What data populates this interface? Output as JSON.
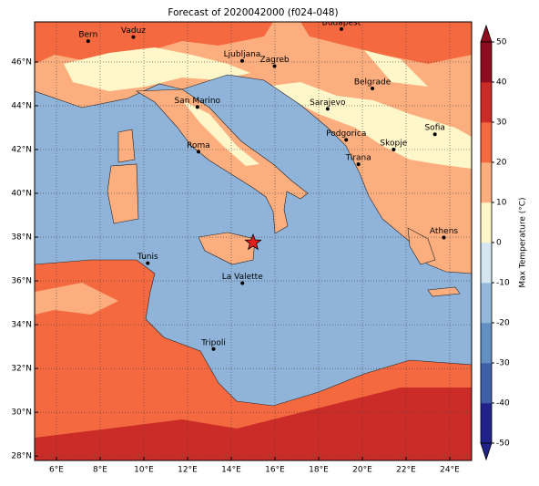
{
  "map": {
    "title": "Forecast of 2020042000 (f024-048)",
    "lon_range": [
      5,
      25
    ],
    "lat_range": [
      27.8,
      47.83
    ],
    "lon_ticks": [
      {
        "value": 6,
        "label": "6°E"
      },
      {
        "value": 8,
        "label": "8°E"
      },
      {
        "value": 10,
        "label": "10°E"
      },
      {
        "value": 12,
        "label": "12°E"
      },
      {
        "value": 14,
        "label": "14°E"
      },
      {
        "value": 16,
        "label": "16°E"
      },
      {
        "value": 18,
        "label": "18°E"
      },
      {
        "value": 20,
        "label": "20°E"
      },
      {
        "value": 22,
        "label": "22°E"
      },
      {
        "value": 24,
        "label": "24°E"
      }
    ],
    "lat_ticks": [
      {
        "value": 28,
        "label": "28°N"
      },
      {
        "value": 30,
        "label": "30°N"
      },
      {
        "value": 32,
        "label": "32°N"
      },
      {
        "value": 34,
        "label": "34°N"
      },
      {
        "value": 36,
        "label": "36°N"
      },
      {
        "value": 38,
        "label": "38°N"
      },
      {
        "value": 40,
        "label": "40°N"
      },
      {
        "value": 42,
        "label": "42°N"
      },
      {
        "value": 44,
        "label": "44°N"
      },
      {
        "value": 46,
        "label": "46°N"
      }
    ],
    "cities": [
      {
        "name": "Bern",
        "lon": 7.45,
        "lat": 46.95
      },
      {
        "name": "Vaduz",
        "lon": 9.52,
        "lat": 47.14
      },
      {
        "name": "Budapest",
        "lon": 19.04,
        "lat": 47.5
      },
      {
        "name": "Ljubljana",
        "lon": 14.5,
        "lat": 46.05
      },
      {
        "name": "Zagreb",
        "lon": 15.98,
        "lat": 45.81
      },
      {
        "name": "Belgrade",
        "lon": 20.46,
        "lat": 44.79
      },
      {
        "name": "San Marino",
        "lon": 12.45,
        "lat": 43.94
      },
      {
        "name": "Sarajevo",
        "lon": 18.41,
        "lat": 43.86
      },
      {
        "name": "Sofia",
        "lon": 23.32,
        "lat": 42.7
      },
      {
        "name": "Roma",
        "lon": 12.5,
        "lat": 41.9
      },
      {
        "name": "Podgorica",
        "lon": 19.26,
        "lat": 42.44
      },
      {
        "name": "Skopje",
        "lon": 21.43,
        "lat": 42.0
      },
      {
        "name": "Tirana",
        "lon": 19.82,
        "lat": 41.33
      },
      {
        "name": "Athens",
        "lon": 23.73,
        "lat": 37.98
      },
      {
        "name": "Tunis",
        "lon": 10.18,
        "lat": 36.81
      },
      {
        "name": "La Valette",
        "lon": 14.51,
        "lat": 35.9
      },
      {
        "name": "Tripoli",
        "lon": 13.19,
        "lat": 32.89
      }
    ],
    "marker": {
      "lon": 15.0,
      "lat": 37.75,
      "color": "#e8201c"
    },
    "colorbar": {
      "label": "Max Temperature (°C)",
      "range": [
        -50,
        50
      ],
      "ticks": [
        -50,
        -40,
        -30,
        -20,
        -10,
        0,
        10,
        20,
        30,
        40,
        50
      ],
      "colors": [
        "#20228a",
        "#3f60a8",
        "#6390c2",
        "#93b8db",
        "#d3e6f1",
        "#fff7c9",
        "#fdae7e",
        "#f4693f",
        "#cb2c28",
        "#8e0c1f"
      ]
    }
  }
}
